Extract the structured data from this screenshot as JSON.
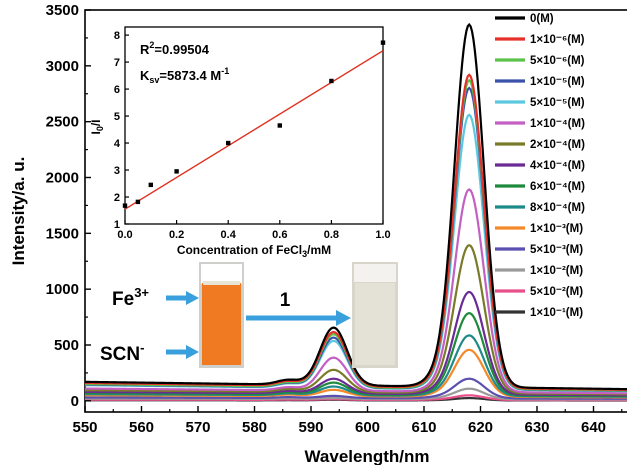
{
  "chart_data": [
    {
      "type": "line",
      "title": "",
      "xlabel": "Wavelength/nm",
      "ylabel": "Intensity/a. u.",
      "xlim": [
        550,
        650
      ],
      "ylim": [
        -100,
        3500
      ],
      "x_ticks": [
        550,
        560,
        570,
        580,
        590,
        600,
        610,
        620,
        630,
        640,
        650
      ],
      "y_ticks": [
        0,
        500,
        1000,
        1500,
        2000,
        2500,
        3000,
        3500
      ],
      "grid": false,
      "legend_position": "right",
      "series": [
        {
          "name": "0(M)",
          "color": "#000000",
          "peak_594": 660,
          "peak_618": 3380,
          "baseline": 170
        },
        {
          "name": "1×10⁻⁶(M)",
          "color": "#e8302b",
          "peak_594": 620,
          "peak_618": 2930,
          "baseline": 160
        },
        {
          "name": "5×10⁻⁶(M)",
          "color": "#5cc24a",
          "peak_594": 600,
          "peak_618": 2880,
          "baseline": 150
        },
        {
          "name": "1×10⁻⁵(M)",
          "color": "#3a52a8",
          "peak_594": 570,
          "peak_618": 2810,
          "baseline": 145
        },
        {
          "name": "5×10⁻⁵(M)",
          "color": "#5cc8e0",
          "peak_594": 540,
          "peak_618": 2570,
          "baseline": 140
        },
        {
          "name": "1×10⁻⁴(M)",
          "color": "#c45fc4",
          "peak_594": 390,
          "peak_618": 1900,
          "baseline": 110
        },
        {
          "name": "2×10⁻⁴(M)",
          "color": "#7a7a28",
          "peak_594": 280,
          "peak_618": 1400,
          "baseline": 95
        },
        {
          "name": "4×10⁻⁴(M)",
          "color": "#6a2b94",
          "peak_594": 200,
          "peak_618": 980,
          "baseline": 80
        },
        {
          "name": "6×10⁻⁴(M)",
          "color": "#1f8a3c",
          "peak_594": 165,
          "peak_618": 790,
          "baseline": 70
        },
        {
          "name": "8×10⁻⁴(M)",
          "color": "#1e8a8a",
          "peak_594": 130,
          "peak_618": 590,
          "baseline": 60
        },
        {
          "name": "1×10⁻³(M)",
          "color": "#f4892a",
          "peak_594": 100,
          "peak_618": 460,
          "baseline": 50
        },
        {
          "name": "5×10⁻³(M)",
          "color": "#5b4fb0",
          "peak_594": 45,
          "peak_618": 200,
          "baseline": 30
        },
        {
          "name": "1×10⁻²(M)",
          "color": "#9a9a9a",
          "peak_594": 25,
          "peak_618": 110,
          "baseline": 20
        },
        {
          "name": "5×10⁻²(M)",
          "color": "#e8508c",
          "peak_594": 15,
          "peak_618": 50,
          "baseline": 10
        },
        {
          "name": "1×10⁻¹(M)",
          "color": "#333333",
          "peak_594": 10,
          "peak_618": 25,
          "baseline": 5
        }
      ],
      "annotations": {
        "fe_label": "Fe",
        "fe_sup": "3+",
        "scn_label": "SCN",
        "scn_sup": "-",
        "arrow_label": "1"
      }
    },
    {
      "type": "scatter",
      "xlabel_main": "Concentration of FeCl",
      "xlabel_sub": "3",
      "xlabel_tail": "/mM",
      "ylabel_main": "I",
      "ylabel_sub": "0",
      "ylabel_tail": "/I",
      "xlim": [
        0,
        1.0
      ],
      "ylim": [
        1,
        8.3
      ],
      "x_ticks": [
        "0.0",
        "0.2",
        "0.4",
        "0.6",
        "0.8",
        "1.0"
      ],
      "y_ticks": [
        "1",
        "2",
        "3",
        "4",
        "5",
        "6",
        "7",
        "8"
      ],
      "points": [
        {
          "x": 0.0,
          "y": 1.68
        },
        {
          "x": 0.05,
          "y": 1.82
        },
        {
          "x": 0.1,
          "y": 2.45
        },
        {
          "x": 0.2,
          "y": 2.95
        },
        {
          "x": 0.4,
          "y": 4.0
        },
        {
          "x": 0.6,
          "y": 4.65
        },
        {
          "x": 0.8,
          "y": 6.3
        },
        {
          "x": 1.0,
          "y": 7.72
        }
      ],
      "fit": {
        "slope": 5.873,
        "intercept": 1.55,
        "color": "#e03020"
      },
      "r2_label": "R",
      "r2_sup": "2",
      "r2_value": "=0.99504",
      "ksv_label": "K",
      "ksv_sub": "sv",
      "ksv_value": "=5873.4 M",
      "ksv_sup": "-1"
    }
  ]
}
